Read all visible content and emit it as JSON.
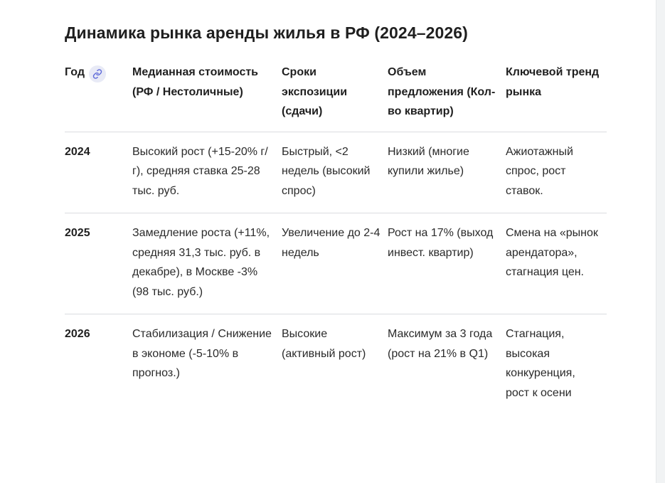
{
  "title": "Динамика рынка аренды жилья в РФ (2024–2026)",
  "table": {
    "headers": [
      "Год",
      "Медианная стоимость (РФ / Нестоличные)",
      "Сроки экспозиции (сдачи)",
      "Объем предложения (Кол-во квартир)",
      "Ключевой тренд рынка"
    ],
    "rows": [
      {
        "year": "2024",
        "price": "Высокий рост (+15-20% г/г), средняя ставка 25-28 тыс. руб.",
        "exposure": "Быстрый, <2 недель (высокий спрос)",
        "supply": "Низкий (многие купили жилье)",
        "trend": "Ажиотажный спрос, рост ставок."
      },
      {
        "year": "2025",
        "price": "Замедление роста (+11%, средняя 31,3 тыс. руб. в декабре), в Москве -3% (98 тыс. руб.)",
        "exposure": "Увеличение до 2-4 недель",
        "supply": "Рост на 17% (выход инвест. квартир)",
        "trend": "Смена на «рынок арендатора», стагнация цен."
      },
      {
        "year": "2026",
        "price": "Стабилизация / Снижение в экономе (-5-10% в прогноз.)",
        "exposure": "Высокие (активный рост)",
        "supply": "Максимум за 3 года (рост на 21% в Q1)",
        "trend": "Стагнация, высокая конкуренция, рост к осени"
      }
    ]
  },
  "icons": {
    "header_link": "link-icon"
  },
  "colors": {
    "text": "#1f1f1f",
    "divider": "#dadce0",
    "chip": "#e8eaf6",
    "chip_icon": "#5f6ad9"
  }
}
